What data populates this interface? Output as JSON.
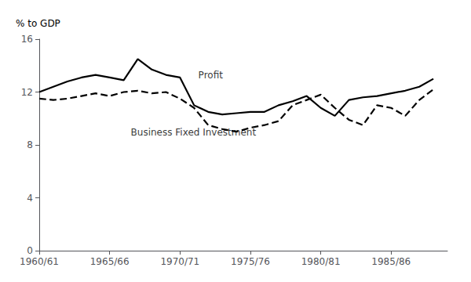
{
  "chart_data": {
    "type": "line",
    "ylabel": "% to GDP",
    "x": [
      1960,
      1961,
      1962,
      1963,
      1964,
      1965,
      1966,
      1967,
      1968,
      1969,
      1970,
      1971,
      1972,
      1973,
      1974,
      1975,
      1976,
      1977,
      1978,
      1979,
      1980,
      1981,
      1982,
      1983,
      1984,
      1985,
      1986,
      1987,
      1988
    ],
    "series": [
      {
        "color": "#000000",
        "line_style": "solid",
        "values": [
          12.0,
          12.4,
          12.8,
          13.1,
          13.3,
          13.1,
          12.9,
          14.5,
          13.7,
          13.3,
          13.1,
          11.0,
          10.5,
          10.3,
          10.4,
          10.5,
          10.5,
          11.0,
          11.3,
          11.7,
          10.8,
          10.2,
          11.4,
          11.6,
          11.7,
          11.9,
          12.1,
          12.4,
          13.0
        ]
      },
      {
        "color": "#000000",
        "line_style": "dashed",
        "values": [
          11.5,
          11.4,
          11.5,
          11.7,
          11.9,
          11.7,
          12.0,
          12.1,
          11.9,
          12.0,
          11.5,
          10.8,
          9.5,
          9.2,
          9.0,
          9.3,
          9.5,
          9.8,
          11.0,
          11.4,
          11.8,
          10.8,
          9.9,
          9.5,
          11.0,
          10.8,
          10.2,
          11.4,
          12.2
        ]
      }
    ],
    "annotations": [
      {
        "text": "Profit",
        "x": 1971.3,
        "y": 12.9
      },
      {
        "text": "Business Fixed Investment",
        "x": 1966.5,
        "y": 9.3
      }
    ],
    "xlim": [
      1960,
      1989
    ],
    "xticks": [
      {
        "value": 1960,
        "label": "1960/61"
      },
      {
        "value": 1965,
        "label": "1965/66"
      },
      {
        "value": 1970,
        "label": "1970/71"
      },
      {
        "value": 1975,
        "label": "1975/76"
      },
      {
        "value": 1980,
        "label": "1980/81"
      },
      {
        "value": 1985,
        "label": "1985/86"
      }
    ],
    "ylim": [
      0,
      16
    ],
    "yticks": [
      0,
      4,
      8,
      12,
      16
    ],
    "grid": false
  }
}
